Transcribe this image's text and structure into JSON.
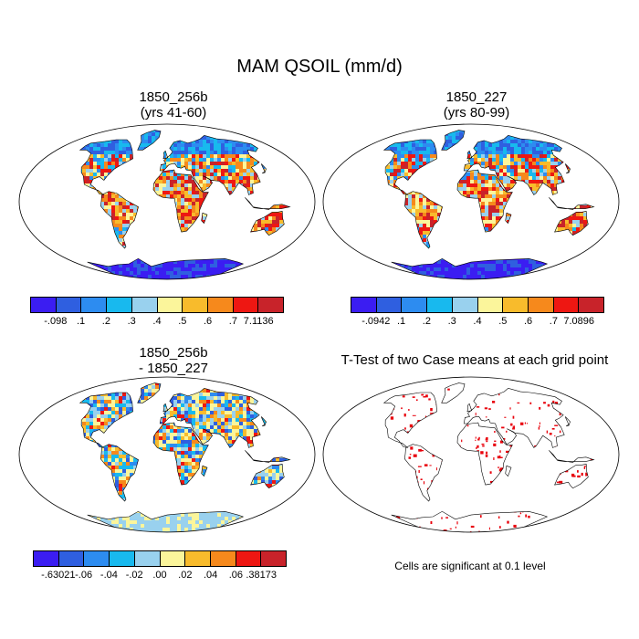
{
  "title": "MAM QSOIL (mm/d)",
  "panels": [
    {
      "line1": "1850_256b",
      "line2": "(yrs 41-60)"
    },
    {
      "line1": "1850_227",
      "line2": "(yrs 80-99)"
    },
    {
      "line1": "1850_256b",
      "line2": "- 1850_227"
    },
    {
      "line1": "T-Test of two Case means at each grid point",
      "line2": ""
    }
  ],
  "colorbars": [
    {
      "colors": [
        "#3b1df2",
        "#2f5fe0",
        "#2d8cf0",
        "#18b9ee",
        "#99d1ee",
        "#fbf59b",
        "#f8bb2c",
        "#f6891c",
        "#ee1712",
        "#c8232a"
      ],
      "labels": [
        "-.098",
        ".1",
        ".2",
        ".3",
        ".4",
        ".5",
        ".6",
        ".7",
        "7.1136"
      ]
    },
    {
      "colors": [
        "#3b1df2",
        "#2f5fe0",
        "#2d8cf0",
        "#18b9ee",
        "#99d1ee",
        "#fbf59b",
        "#f8bb2c",
        "#f6891c",
        "#ee1712",
        "#c8232a"
      ],
      "labels": [
        "-.0942",
        ".1",
        ".2",
        ".3",
        ".4",
        ".5",
        ".6",
        ".7",
        "7.0896"
      ]
    },
    {
      "colors": [
        "#3b1df2",
        "#2f5fe0",
        "#2d8cf0",
        "#18b9ee",
        "#99d1ee",
        "#fbf59b",
        "#f8bb2c",
        "#f6891c",
        "#ee1712",
        "#c8232a"
      ],
      "labels": [
        "-.63021",
        "-.06",
        "-.04",
        "-.02",
        ".00",
        ".02",
        ".04",
        ".06",
        ".38173"
      ]
    }
  ],
  "significance_note": "Cells are significant at 0.1 level",
  "significance_color": "#e8000b"
}
